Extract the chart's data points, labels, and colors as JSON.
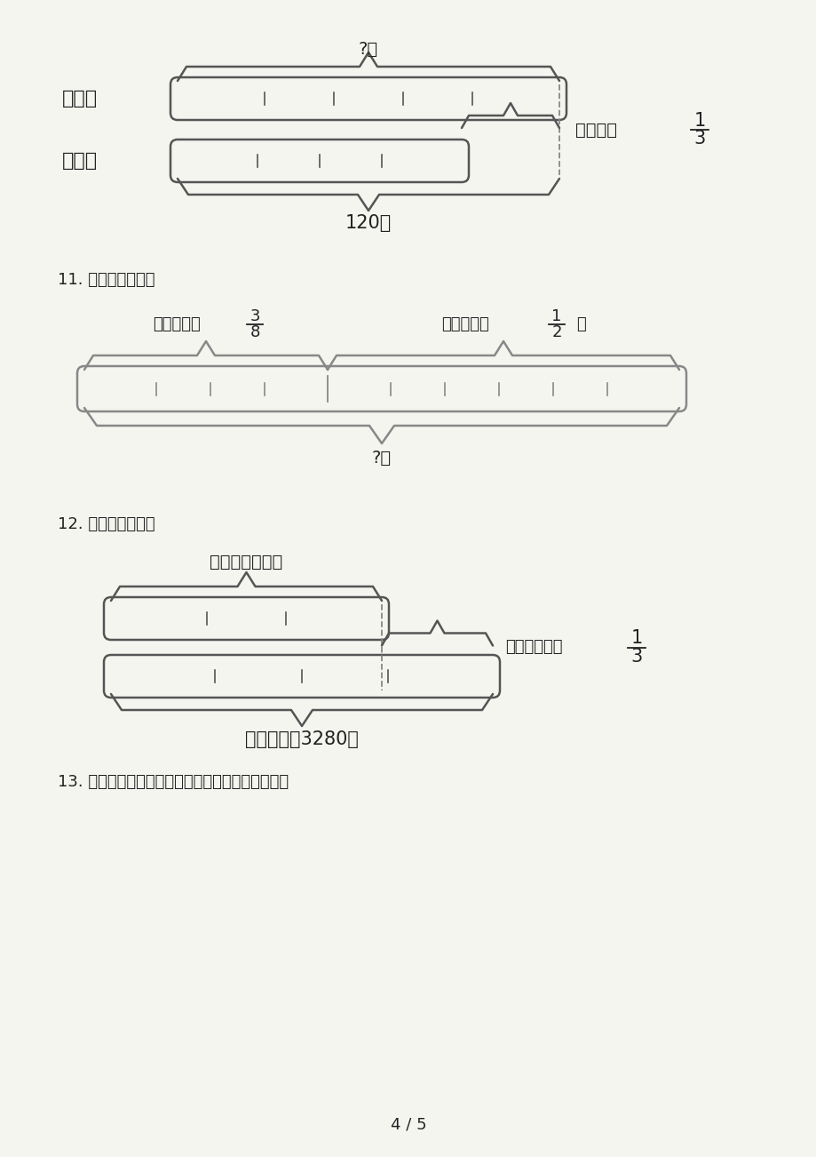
{
  "bg_color": "#f2f2ee",
  "text_color": "#1a1a1a",
  "page_footer": "4 / 5",
  "section10": {
    "label_shanyang": "山羊：",
    "label_mianyang": "绵羊：",
    "question_mark": "?只",
    "label_120": "120只",
    "frac_num": "1",
    "frac_den": "3",
    "frac_prefix": "比绵羊多"
  },
  "section11": {
    "question_label": "11. 看图列式计算。",
    "day1_text": "第一天用去",
    "day1_frac_num": "3",
    "day1_frac_den": "8",
    "day2_text": "第二天用去",
    "day2_frac_num": "1",
    "day2_frac_den": "2",
    "day2_suffix": "吨",
    "bottom_label": "?吨"
  },
  "section12": {
    "question_label": "12. 看图列式计算。",
    "top_label": "天桥小区有？人",
    "extra_label": "比天桥小区多",
    "frac_num": "1",
    "frac_den": "3",
    "bottom_label": "阳光小区有3280人"
  },
  "section13": {
    "question_label": "13. 看图解决问题，只列综合算式或方程，不计算。"
  }
}
